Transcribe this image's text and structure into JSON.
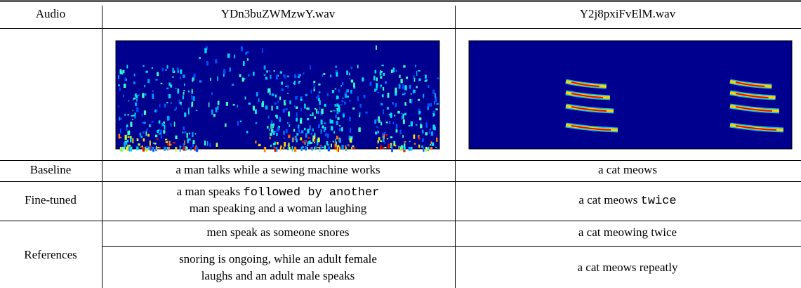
{
  "header": [
    "Audio",
    "YDn3buZWMzwY.wav",
    "Y2j8pxiFvElM.wav"
  ],
  "rows": [
    {
      "label": "Baseline",
      "cells": [
        [
          [
            {
              "text": "a man talks while a sewing machine works"
            }
          ]
        ],
        [
          [
            {
              "text": "a cat meows"
            }
          ]
        ]
      ]
    },
    {
      "label": "Fine-tuned",
      "cells": [
        [
          [
            {
              "text": "a man speaks "
            },
            {
              "text": "followed by another",
              "mono": true
            }
          ],
          [
            {
              "text": "man speaking and a woman laughing"
            }
          ]
        ],
        [
          [
            {
              "text": "a cat meows "
            },
            {
              "text": "twice",
              "mono": true
            }
          ]
        ]
      ]
    },
    {
      "label": "References",
      "subrows": [
        [
          [
            [
              {
                "text": "men speak as someone snores"
              }
            ]
          ],
          [
            [
              {
                "text": "a cat meowing twice"
              }
            ]
          ]
        ],
        [
          [
            [
              {
                "text": "snoring is ongoing, while an adult female"
              }
            ],
            [
              {
                "text": "laughs and an adult male speaks"
              }
            ]
          ],
          [
            [
              {
                "text": "a cat meows repeatly"
              }
            ]
          ]
        ]
      ]
    }
  ]
}
